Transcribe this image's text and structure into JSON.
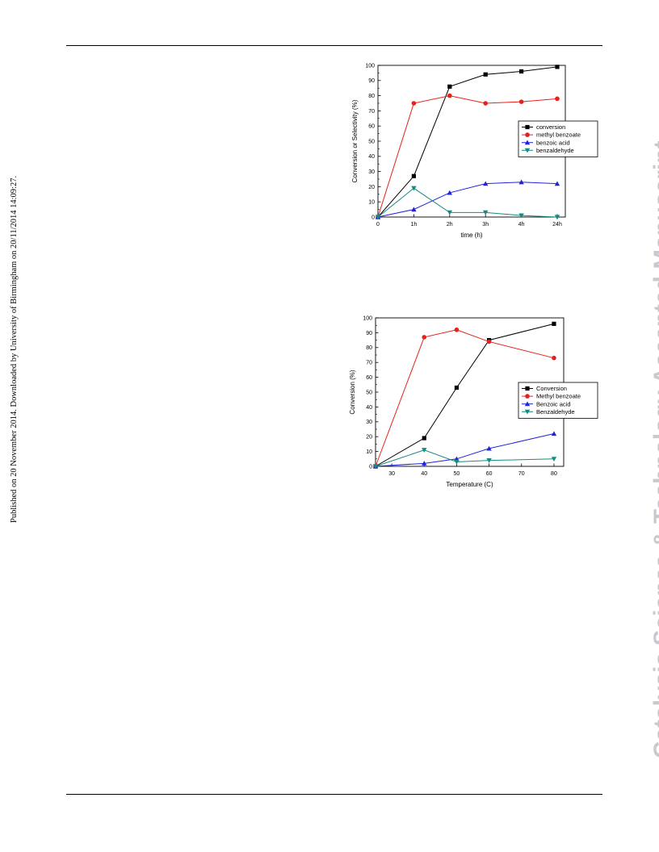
{
  "sidebar_note": "Published on 20 November 2014. Downloaded by University of Birmingham on 20/11/2014 14:09:27.",
  "watermark": "Catalysis Science & Technology Accepted Manuscript",
  "chart_data": [
    {
      "type": "line",
      "xlabel": "time (h)",
      "ylabel": "Conversion or Selectivity (%)",
      "categories": [
        "0",
        "1h",
        "2h",
        "3h",
        "4h",
        "24h"
      ],
      "ylim": [
        0,
        100
      ],
      "yticks": [
        0,
        10,
        20,
        30,
        40,
        50,
        60,
        70,
        80,
        90,
        100
      ],
      "legend_position": "right-middle",
      "series": [
        {
          "name": "conversion",
          "color": "#000000",
          "marker": "square",
          "values": [
            0,
            27,
            86,
            94,
            96,
            99
          ]
        },
        {
          "name": "methyl benzoate",
          "color": "#e8201c",
          "marker": "circle",
          "values": [
            0,
            75,
            80,
            75,
            76,
            78
          ]
        },
        {
          "name": "benzoic acid",
          "color": "#2222dd",
          "marker": "triangle-up",
          "values": [
            0,
            5,
            16,
            22,
            23,
            22
          ]
        },
        {
          "name": "benzaldehyde",
          "color": "#158a80",
          "marker": "triangle-down",
          "values": [
            0,
            19,
            3,
            3,
            1,
            0
          ]
        }
      ]
    },
    {
      "type": "line",
      "xlabel": "Temperature (C)",
      "ylabel": "Conversion (%)",
      "xlim": [
        25,
        83
      ],
      "xticks": [
        30,
        40,
        50,
        60,
        70,
        80
      ],
      "ylim": [
        0,
        100
      ],
      "yticks": [
        0,
        10,
        20,
        30,
        40,
        50,
        60,
        70,
        80,
        90,
        100
      ],
      "legend_position": "right-middle",
      "series": [
        {
          "name": "Conversion",
          "color": "#000000",
          "marker": "square",
          "x": [
            25,
            40,
            50,
            60,
            80
          ],
          "values": [
            0,
            19,
            53,
            85,
            96
          ]
        },
        {
          "name": "Methyl benzoate",
          "color": "#e8201c",
          "marker": "circle",
          "x": [
            25,
            40,
            50,
            60,
            80
          ],
          "values": [
            0,
            87,
            92,
            84,
            73
          ]
        },
        {
          "name": "Benzoic acid",
          "color": "#2222dd",
          "marker": "triangle-up",
          "x": [
            25,
            40,
            50,
            60,
            80
          ],
          "values": [
            0,
            2,
            5,
            12,
            22
          ]
        },
        {
          "name": "Benzaldehyde",
          "color": "#158a80",
          "marker": "triangle-down",
          "x": [
            25,
            40,
            50,
            60,
            80
          ],
          "values": [
            0,
            11,
            3,
            4,
            5
          ]
        }
      ]
    }
  ]
}
